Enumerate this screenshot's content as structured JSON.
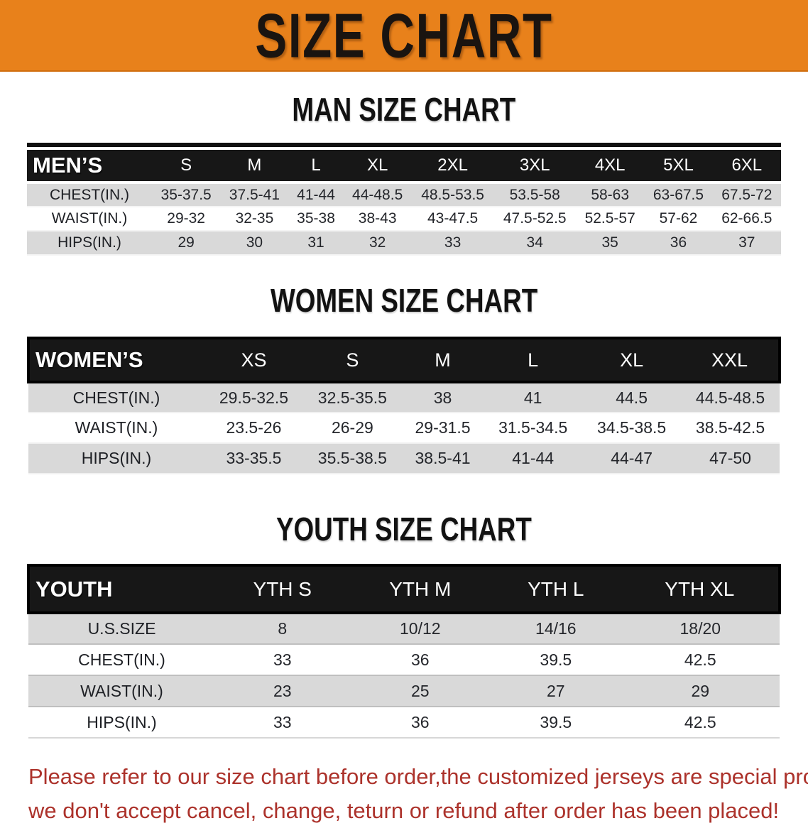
{
  "banner": {
    "title": "SIZE CHART",
    "bg_color": "#E8811B",
    "text_color": "#1A1410"
  },
  "sections": {
    "men": {
      "heading": "MAN SIZE CHART",
      "table": {
        "header_label": "MEN’S",
        "columns": [
          "S",
          "M",
          "L",
          "XL",
          "2XL",
          "3XL",
          "4XL",
          "5XL",
          "6XL"
        ],
        "rows": [
          {
            "label": "CHEST(IN.)",
            "values": [
              "35-37.5",
              "37.5-41",
              "41-44",
              "44-48.5",
              "48.5-53.5",
              "53.5-58",
              "58-63",
              "63-67.5",
              "67.5-72"
            ]
          },
          {
            "label": "WAIST(IN.)",
            "values": [
              "29-32",
              "32-35",
              "35-38",
              "38-43",
              "43-47.5",
              "47.5-52.5",
              "52.5-57",
              "57-62",
              "62-66.5"
            ]
          },
          {
            "label": "HIPS(IN.)",
            "values": [
              "29",
              "30",
              "31",
              "32",
              "33",
              "34",
              "35",
              "36",
              "37"
            ]
          }
        ]
      }
    },
    "women": {
      "heading": "WOMEN SIZE CHART",
      "table": {
        "header_label": "WOMEN’S",
        "columns": [
          "XS",
          "S",
          "M",
          "L",
          "XL",
          "XXL"
        ],
        "rows": [
          {
            "label": "CHEST(IN.)",
            "values": [
              "29.5-32.5",
              "32.5-35.5",
              "38",
              "41",
              "44.5",
              "44.5-48.5"
            ]
          },
          {
            "label": "WAIST(IN.)",
            "values": [
              "23.5-26",
              "26-29",
              "29-31.5",
              "31.5-34.5",
              "34.5-38.5",
              "38.5-42.5"
            ]
          },
          {
            "label": "HIPS(IN.)",
            "values": [
              "33-35.5",
              "35.5-38.5",
              "38.5-41",
              "41-44",
              "44-47",
              "47-50"
            ]
          }
        ]
      }
    },
    "youth": {
      "heading": "YOUTH SIZE CHART",
      "table": {
        "header_label": "YOUTH",
        "columns": [
          "YTH S",
          "YTH M",
          "YTH L",
          "YTH XL"
        ],
        "rows": [
          {
            "label": "U.S.SIZE",
            "values": [
              "8",
              "10/12",
              "14/16",
              "18/20"
            ]
          },
          {
            "label": "CHEST(IN.)",
            "values": [
              "33",
              "36",
              "39.5",
              "42.5"
            ]
          },
          {
            "label": "WAIST(IN.)",
            "values": [
              "23",
              "25",
              "27",
              "29"
            ]
          },
          {
            "label": "HIPS(IN.)",
            "values": [
              "33",
              "36",
              "39.5",
              "42.5"
            ]
          }
        ]
      }
    }
  },
  "footer": {
    "line1": "Please refer to our size chart before order,the customized jerseys are special products,",
    "line2": "we don't accept cancel, change, teturn or refund after order has been placed!",
    "text_color": "#AC322B"
  },
  "colors": {
    "banner_orange": "#E8811B",
    "header_bar_black": "#171717",
    "header_text_white": "#FFFFFF",
    "row_alt_gray": "#D9D9D9",
    "row_white": "#FFFFFF",
    "body_text": "#24262B"
  }
}
